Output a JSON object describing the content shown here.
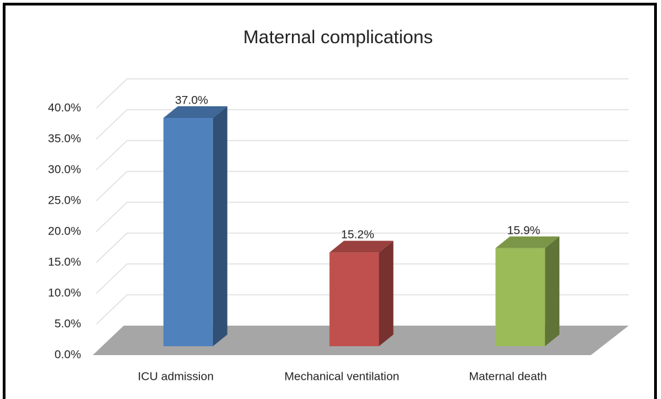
{
  "chart_data": {
    "type": "bar3d",
    "title": "Maternal complications",
    "categories": [
      "ICU admission",
      "Mechanical ventilation",
      "Maternal death"
    ],
    "values": [
      37.0,
      15.2,
      15.9
    ],
    "value_labels": [
      "37.0%",
      "15.2%",
      "15.9%"
    ],
    "colors": [
      "#4f81bd",
      "#c0504d",
      "#9bbb59"
    ],
    "ylim": [
      0,
      40
    ],
    "yticks": [
      {
        "value": 0,
        "label": "0.0%"
      },
      {
        "value": 5,
        "label": "5.0%"
      },
      {
        "value": 10,
        "label": "10.0%"
      },
      {
        "value": 15,
        "label": "15.0%"
      },
      {
        "value": 20,
        "label": "20.0%"
      },
      {
        "value": 25,
        "label": "25.0%"
      },
      {
        "value": 30,
        "label": "30.0%"
      },
      {
        "value": 35,
        "label": "35.0%"
      },
      {
        "value": 40,
        "label": "40.0%"
      }
    ],
    "grid": true
  }
}
